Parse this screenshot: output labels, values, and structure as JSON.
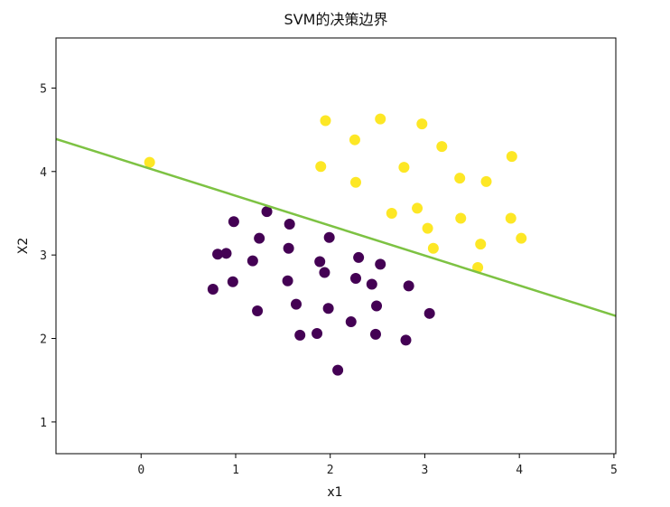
{
  "chart_data": {
    "type": "scatter",
    "title": "SVM的决策边界",
    "xlabel": "x1",
    "ylabel": "X2",
    "xlim": [
      -0.9,
      5.02
    ],
    "ylim": [
      0.62,
      5.6
    ],
    "xticks": [
      0,
      1,
      2,
      3,
      4,
      5
    ],
    "yticks": [
      1,
      2,
      3,
      4,
      5
    ],
    "grid": false,
    "series": [
      {
        "color": "#440154",
        "x": [
          0.76,
          0.81,
          0.9,
          0.97,
          0.98,
          1.18,
          1.23,
          1.25,
          1.33,
          1.55,
          1.56,
          1.57,
          1.64,
          1.68,
          1.86,
          1.89,
          1.94,
          1.98,
          1.99,
          2.08,
          2.22,
          2.27,
          2.3,
          2.44,
          2.48,
          2.49,
          2.53,
          2.8,
          2.83,
          3.05
        ],
        "y": [
          2.59,
          3.01,
          3.02,
          2.68,
          3.4,
          2.93,
          2.33,
          3.2,
          3.52,
          2.69,
          3.08,
          3.37,
          2.41,
          2.04,
          2.06,
          2.92,
          2.79,
          2.36,
          3.21,
          1.62,
          2.2,
          2.72,
          2.97,
          2.65,
          2.05,
          2.39,
          2.89,
          1.98,
          2.63,
          2.3
        ]
      },
      {
        "color": "#fde725",
        "x": [
          0.09,
          1.9,
          1.95,
          2.26,
          2.27,
          2.53,
          2.65,
          2.78,
          2.92,
          2.97,
          3.03,
          3.09,
          3.18,
          3.37,
          3.38,
          3.56,
          3.59,
          3.65,
          3.91,
          3.92,
          4.02
        ],
        "y": [
          4.11,
          4.06,
          4.61,
          4.38,
          3.87,
          4.63,
          3.5,
          4.05,
          3.56,
          4.57,
          3.32,
          3.08,
          4.3,
          3.92,
          3.44,
          2.85,
          3.13,
          3.88,
          3.44,
          4.18,
          3.2
        ]
      }
    ],
    "decision_boundary": {
      "color": "#7dc243",
      "x": [
        -0.9,
        5.02
      ],
      "y": [
        4.39,
        2.27
      ]
    }
  }
}
